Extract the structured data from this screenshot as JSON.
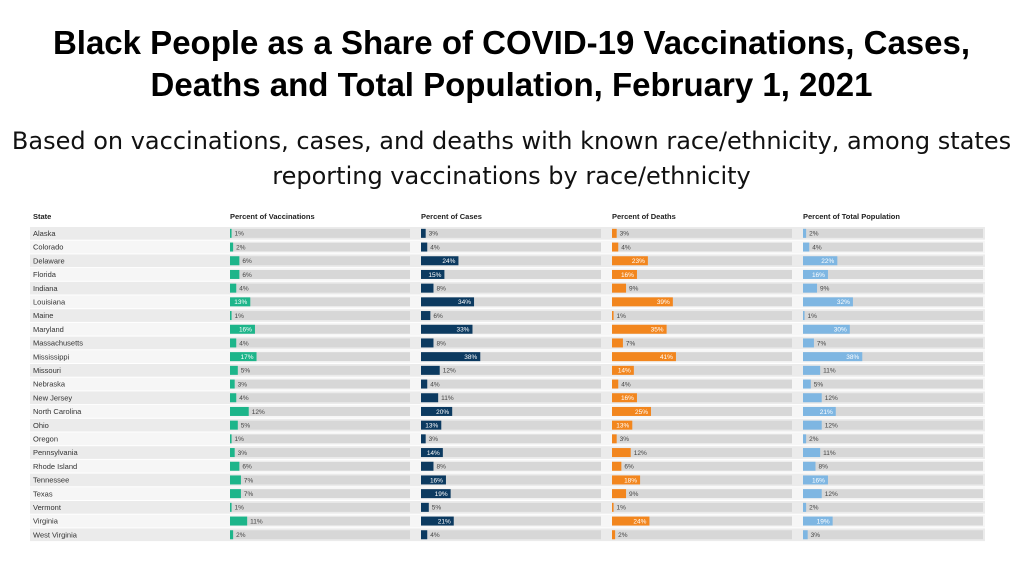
{
  "title": "Black People as a Share of COVID-19 Vaccinations, Cases, Deaths and Total Population, February 1, 2021",
  "subtitle": "Based on vaccinations, cases, and deaths with known race/ethnicity, among states reporting vaccinations by race/ethnicity",
  "colors": {
    "vaccinations": "#1db58a",
    "cases": "#0c3a60",
    "deaths": "#f2861e",
    "population": "#7eb6e2",
    "row_band": "#ebebeb",
    "track": "#d7d7d7"
  },
  "chart_data": {
    "type": "bar",
    "row_header": "State",
    "xlim": [
      0,
      100
    ],
    "categories": [
      "Alaska",
      "Colorado",
      "Delaware",
      "Florida",
      "Indiana",
      "Louisiana",
      "Maine",
      "Maryland",
      "Massachusetts",
      "Mississippi",
      "Missouri",
      "Nebraska",
      "New Jersey",
      "North Carolina",
      "Ohio",
      "Oregon",
      "Pennsylvania",
      "Rhode Island",
      "Tennessee",
      "Texas",
      "Vermont",
      "Virginia",
      "West Virginia"
    ],
    "series": [
      {
        "name": "Percent of Vaccinations",
        "values": [
          1,
          2,
          6,
          6,
          4,
          13,
          1,
          16,
          4,
          17,
          5,
          3,
          4,
          12,
          5,
          1,
          3,
          6,
          7,
          7,
          1,
          11,
          2
        ]
      },
      {
        "name": "Percent of Cases",
        "values": [
          3,
          4,
          24,
          15,
          8,
          34,
          6,
          33,
          8,
          38,
          12,
          4,
          11,
          20,
          13,
          3,
          14,
          8,
          16,
          19,
          5,
          21,
          4
        ]
      },
      {
        "name": "Percent of Deaths",
        "values": [
          3,
          4,
          23,
          16,
          9,
          39,
          1,
          35,
          7,
          41,
          14,
          4,
          16,
          25,
          13,
          3,
          12,
          6,
          18,
          9,
          1,
          24,
          2
        ]
      },
      {
        "name": "Percent of Total Population",
        "values": [
          2,
          4,
          22,
          16,
          9,
          32,
          1,
          30,
          7,
          38,
          11,
          5,
          12,
          21,
          12,
          2,
          11,
          8,
          16,
          12,
          2,
          19,
          3
        ]
      }
    ],
    "value_labels": [
      [
        "1%",
        "2%",
        "6%",
        "6%",
        "4%",
        "13%",
        "1%",
        "16%",
        "4%",
        "17%",
        "5%",
        "3%",
        "4%",
        "12%",
        "5%",
        "1%",
        "3%",
        "6%",
        "7%",
        "7%",
        "1%",
        "11%",
        "2%"
      ],
      [
        "3%",
        "4%",
        "24%",
        "15%",
        "8%",
        "34%",
        "6%",
        "33%",
        "8%",
        "38%",
        "12%",
        "4%",
        "11%",
        "20%",
        "13%",
        "3%",
        "14%",
        "8%",
        "16%",
        "19%",
        "5%",
        "21%",
        "4%"
      ],
      [
        "3%",
        "4%",
        "23%",
        "16%",
        "9%",
        "39%",
        "1%",
        "35%",
        "7%",
        "41%",
        "14%",
        "4%",
        "16%",
        "25%",
        "13%",
        "3%",
        "12%",
        "6%",
        "18%",
        "9%",
        "1%",
        "24%",
        "2%"
      ],
      [
        "2%",
        "4%",
        "22%",
        "16%",
        "9%",
        "32%",
        "1%",
        "30%",
        "7%",
        "38%",
        "11%",
        "5%",
        "12%",
        "21%",
        "12%",
        "2%",
        "11%",
        "8%",
        "16%",
        "12%",
        "2%",
        "19%",
        "3%"
      ]
    ]
  }
}
